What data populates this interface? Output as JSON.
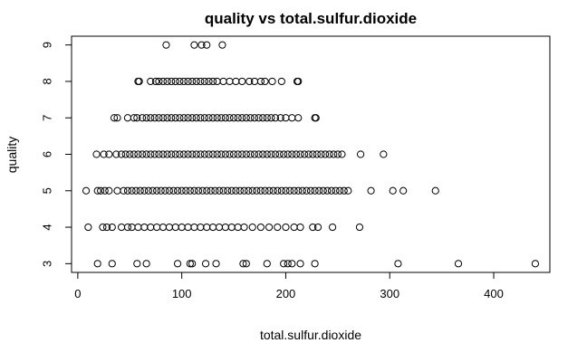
{
  "chart_data": {
    "type": "scatter",
    "title": "quality vs total.sulfur.dioxide",
    "xlabel": "total.sulfur.dioxide",
    "ylabel": "quality",
    "xlim": [
      -6,
      454
    ],
    "ylim": [
      2.76,
      9.24
    ],
    "x_ticks": [
      0,
      100,
      200,
      300,
      400
    ],
    "y_ticks": [
      3,
      4,
      5,
      6,
      7,
      8,
      9
    ],
    "marker": "open-circle",
    "series": [
      {
        "points": [
          [
            85,
            9
          ],
          [
            112,
            9
          ],
          [
            119,
            9
          ],
          [
            124,
            9
          ],
          [
            139,
            9
          ],
          [
            58,
            8
          ],
          [
            59,
            8
          ],
          [
            70,
            8
          ],
          [
            75,
            8
          ],
          [
            78,
            8
          ],
          [
            82,
            8
          ],
          [
            86,
            8
          ],
          [
            90,
            8
          ],
          [
            94,
            8
          ],
          [
            98,
            8
          ],
          [
            102,
            8
          ],
          [
            106,
            8
          ],
          [
            110,
            8
          ],
          [
            114,
            8
          ],
          [
            118,
            8
          ],
          [
            122,
            8
          ],
          [
            126,
            8
          ],
          [
            130,
            8
          ],
          [
            134,
            8
          ],
          [
            140,
            8
          ],
          [
            146,
            8
          ],
          [
            152,
            8
          ],
          [
            158,
            8
          ],
          [
            165,
            8
          ],
          [
            170,
            8
          ],
          [
            176,
            8
          ],
          [
            180,
            8
          ],
          [
            187,
            8
          ],
          [
            196,
            8
          ],
          [
            211,
            8
          ],
          [
            212,
            8
          ],
          [
            35,
            7
          ],
          [
            38,
            7
          ],
          [
            48,
            7
          ],
          [
            54,
            7
          ],
          [
            57,
            7
          ],
          [
            62,
            7
          ],
          [
            66,
            7
          ],
          [
            70,
            7
          ],
          [
            74,
            7
          ],
          [
            78,
            7
          ],
          [
            82,
            7
          ],
          [
            86,
            7
          ],
          [
            90,
            7
          ],
          [
            94,
            7
          ],
          [
            98,
            7
          ],
          [
            102,
            7
          ],
          [
            106,
            7
          ],
          [
            110,
            7
          ],
          [
            114,
            7
          ],
          [
            118,
            7
          ],
          [
            122,
            7
          ],
          [
            126,
            7
          ],
          [
            130,
            7
          ],
          [
            134,
            7
          ],
          [
            138,
            7
          ],
          [
            142,
            7
          ],
          [
            146,
            7
          ],
          [
            150,
            7
          ],
          [
            154,
            7
          ],
          [
            158,
            7
          ],
          [
            162,
            7
          ],
          [
            166,
            7
          ],
          [
            170,
            7
          ],
          [
            174,
            7
          ],
          [
            178,
            7
          ],
          [
            182,
            7
          ],
          [
            186,
            7
          ],
          [
            190,
            7
          ],
          [
            195,
            7
          ],
          [
            200,
            7
          ],
          [
            206,
            7
          ],
          [
            212,
            7
          ],
          [
            228,
            7
          ],
          [
            229,
            7
          ],
          [
            18,
            6
          ],
          [
            25,
            6
          ],
          [
            30,
            6
          ],
          [
            37,
            6
          ],
          [
            42,
            6
          ],
          [
            46,
            6
          ],
          [
            50,
            6
          ],
          [
            54,
            6
          ],
          [
            58,
            6
          ],
          [
            62,
            6
          ],
          [
            66,
            6
          ],
          [
            70,
            6
          ],
          [
            74,
            6
          ],
          [
            78,
            6
          ],
          [
            82,
            6
          ],
          [
            86,
            6
          ],
          [
            90,
            6
          ],
          [
            94,
            6
          ],
          [
            98,
            6
          ],
          [
            102,
            6
          ],
          [
            106,
            6
          ],
          [
            110,
            6
          ],
          [
            114,
            6
          ],
          [
            118,
            6
          ],
          [
            122,
            6
          ],
          [
            126,
            6
          ],
          [
            130,
            6
          ],
          [
            134,
            6
          ],
          [
            138,
            6
          ],
          [
            142,
            6
          ],
          [
            146,
            6
          ],
          [
            150,
            6
          ],
          [
            154,
            6
          ],
          [
            158,
            6
          ],
          [
            162,
            6
          ],
          [
            166,
            6
          ],
          [
            170,
            6
          ],
          [
            174,
            6
          ],
          [
            178,
            6
          ],
          [
            182,
            6
          ],
          [
            186,
            6
          ],
          [
            190,
            6
          ],
          [
            194,
            6
          ],
          [
            198,
            6
          ],
          [
            202,
            6
          ],
          [
            206,
            6
          ],
          [
            210,
            6
          ],
          [
            214,
            6
          ],
          [
            218,
            6
          ],
          [
            222,
            6
          ],
          [
            226,
            6
          ],
          [
            230,
            6
          ],
          [
            234,
            6
          ],
          [
            238,
            6
          ],
          [
            242,
            6
          ],
          [
            246,
            6
          ],
          [
            250,
            6
          ],
          [
            254,
            6
          ],
          [
            272,
            6
          ],
          [
            294,
            6
          ],
          [
            8,
            5
          ],
          [
            19,
            5
          ],
          [
            22,
            5
          ],
          [
            26,
            5
          ],
          [
            30,
            5
          ],
          [
            38,
            5
          ],
          [
            44,
            5
          ],
          [
            48,
            5
          ],
          [
            52,
            5
          ],
          [
            56,
            5
          ],
          [
            60,
            5
          ],
          [
            64,
            5
          ],
          [
            68,
            5
          ],
          [
            72,
            5
          ],
          [
            76,
            5
          ],
          [
            80,
            5
          ],
          [
            84,
            5
          ],
          [
            88,
            5
          ],
          [
            92,
            5
          ],
          [
            96,
            5
          ],
          [
            100,
            5
          ],
          [
            104,
            5
          ],
          [
            108,
            5
          ],
          [
            112,
            5
          ],
          [
            116,
            5
          ],
          [
            120,
            5
          ],
          [
            124,
            5
          ],
          [
            128,
            5
          ],
          [
            132,
            5
          ],
          [
            136,
            5
          ],
          [
            140,
            5
          ],
          [
            144,
            5
          ],
          [
            148,
            5
          ],
          [
            152,
            5
          ],
          [
            156,
            5
          ],
          [
            160,
            5
          ],
          [
            164,
            5
          ],
          [
            168,
            5
          ],
          [
            172,
            5
          ],
          [
            176,
            5
          ],
          [
            180,
            5
          ],
          [
            184,
            5
          ],
          [
            188,
            5
          ],
          [
            192,
            5
          ],
          [
            196,
            5
          ],
          [
            200,
            5
          ],
          [
            204,
            5
          ],
          [
            208,
            5
          ],
          [
            212,
            5
          ],
          [
            216,
            5
          ],
          [
            220,
            5
          ],
          [
            224,
            5
          ],
          [
            228,
            5
          ],
          [
            232,
            5
          ],
          [
            236,
            5
          ],
          [
            240,
            5
          ],
          [
            244,
            5
          ],
          [
            248,
            5
          ],
          [
            252,
            5
          ],
          [
            256,
            5
          ],
          [
            260,
            5
          ],
          [
            282,
            5
          ],
          [
            303,
            5
          ],
          [
            313,
            5
          ],
          [
            344,
            5
          ],
          [
            10,
            4
          ],
          [
            24,
            4
          ],
          [
            28,
            4
          ],
          [
            33,
            4
          ],
          [
            42,
            4
          ],
          [
            48,
            4
          ],
          [
            52,
            4
          ],
          [
            58,
            4
          ],
          [
            64,
            4
          ],
          [
            70,
            4
          ],
          [
            76,
            4
          ],
          [
            82,
            4
          ],
          [
            88,
            4
          ],
          [
            94,
            4
          ],
          [
            100,
            4
          ],
          [
            106,
            4
          ],
          [
            112,
            4
          ],
          [
            118,
            4
          ],
          [
            124,
            4
          ],
          [
            130,
            4
          ],
          [
            136,
            4
          ],
          [
            142,
            4
          ],
          [
            148,
            4
          ],
          [
            154,
            4
          ],
          [
            160,
            4
          ],
          [
            168,
            4
          ],
          [
            176,
            4
          ],
          [
            184,
            4
          ],
          [
            192,
            4
          ],
          [
            200,
            4
          ],
          [
            208,
            4
          ],
          [
            214,
            4
          ],
          [
            226,
            4
          ],
          [
            231,
            4
          ],
          [
            245,
            4
          ],
          [
            271,
            4
          ],
          [
            19,
            3
          ],
          [
            33,
            3
          ],
          [
            57,
            3
          ],
          [
            66,
            3
          ],
          [
            96,
            3
          ],
          [
            108,
            3
          ],
          [
            110,
            3
          ],
          [
            123,
            3
          ],
          [
            133,
            3
          ],
          [
            159,
            3
          ],
          [
            162,
            3
          ],
          [
            182,
            3
          ],
          [
            198,
            3
          ],
          [
            202,
            3
          ],
          [
            206,
            3
          ],
          [
            214,
            3
          ],
          [
            228,
            3
          ],
          [
            308,
            3
          ],
          [
            366,
            3
          ],
          [
            440,
            3
          ]
        ]
      }
    ]
  }
}
